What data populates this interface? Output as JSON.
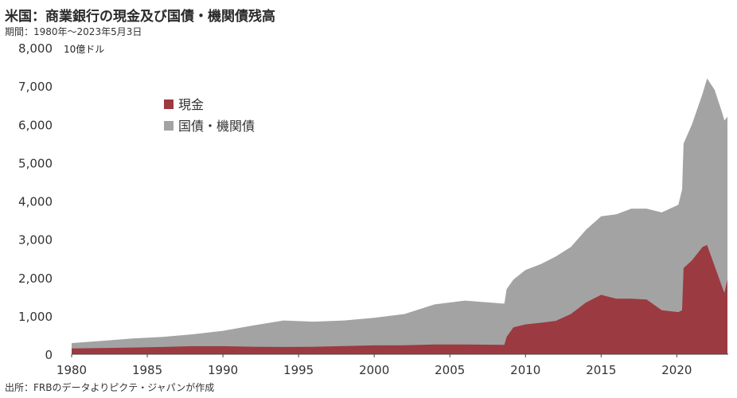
{
  "title": "米国：商業銀行の現金及び国債・機関債残高",
  "subtitle": "期間：1980年～2023年5月3日",
  "source": "出所：FRBのデータよりピクテ・ジャパンが作成",
  "chart_data": {
    "type": "area",
    "title": "米国：商業銀行の現金及び国債・機関債残高",
    "ylabel": "10億ドル",
    "xlabel": "",
    "ylim": [
      0,
      8000
    ],
    "xlim": [
      1980,
      2023.4
    ],
    "yticks": [
      "0",
      "1,000",
      "2,000",
      "3,000",
      "4,000",
      "5,000",
      "6,000",
      "7,000",
      "8,000"
    ],
    "xticks": [
      "1980",
      "1985",
      "1990",
      "1995",
      "2000",
      "2005",
      "2010",
      "2015",
      "2020"
    ],
    "grid": false,
    "legend_position": "upper-left",
    "stacked": true,
    "series": [
      {
        "name": "現金",
        "color": "#9b3a40",
        "points": [
          [
            1980,
            150
          ],
          [
            1982,
            160
          ],
          [
            1984,
            175
          ],
          [
            1986,
            190
          ],
          [
            1988,
            210
          ],
          [
            1990,
            210
          ],
          [
            1992,
            195
          ],
          [
            1994,
            190
          ],
          [
            1996,
            195
          ],
          [
            1998,
            215
          ],
          [
            2000,
            230
          ],
          [
            2002,
            235
          ],
          [
            2004,
            255
          ],
          [
            2006,
            255
          ],
          [
            2008.6,
            245
          ],
          [
            2008.75,
            450
          ],
          [
            2009.2,
            700
          ],
          [
            2010,
            780
          ],
          [
            2011,
            820
          ],
          [
            2012,
            870
          ],
          [
            2013,
            1050
          ],
          [
            2014,
            1350
          ],
          [
            2015,
            1550
          ],
          [
            2016,
            1450
          ],
          [
            2017,
            1450
          ],
          [
            2018,
            1430
          ],
          [
            2019,
            1150
          ],
          [
            2020.1,
            1100
          ],
          [
            2020.35,
            1150
          ],
          [
            2020.45,
            2250
          ],
          [
            2021,
            2450
          ],
          [
            2021.7,
            2800
          ],
          [
            2022,
            2850
          ],
          [
            2022.5,
            2300
          ],
          [
            2023,
            1750
          ],
          [
            2023.15,
            1600
          ],
          [
            2023.35,
            1950
          ]
        ]
      },
      {
        "name": "国債・機関債",
        "color": "#a3a3a3",
        "points": [
          [
            1980,
            290
          ],
          [
            1982,
            350
          ],
          [
            1984,
            410
          ],
          [
            1986,
            450
          ],
          [
            1988,
            520
          ],
          [
            1990,
            610
          ],
          [
            1992,
            750
          ],
          [
            1994,
            880
          ],
          [
            1996,
            850
          ],
          [
            1998,
            880
          ],
          [
            2000,
            950
          ],
          [
            2002,
            1050
          ],
          [
            2004,
            1300
          ],
          [
            2006,
            1400
          ],
          [
            2008.6,
            1320
          ],
          [
            2008.75,
            1700
          ],
          [
            2009.2,
            1950
          ],
          [
            2010,
            2200
          ],
          [
            2011,
            2350
          ],
          [
            2012,
            2550
          ],
          [
            2013,
            2800
          ],
          [
            2014,
            3250
          ],
          [
            2015,
            3600
          ],
          [
            2016,
            3650
          ],
          [
            2017,
            3800
          ],
          [
            2018,
            3800
          ],
          [
            2019,
            3700
          ],
          [
            2020.1,
            3900
          ],
          [
            2020.35,
            4300
          ],
          [
            2020.45,
            5500
          ],
          [
            2021,
            6000
          ],
          [
            2021.7,
            6800
          ],
          [
            2022,
            7200
          ],
          [
            2022.5,
            6900
          ],
          [
            2023,
            6300
          ],
          [
            2023.15,
            6100
          ],
          [
            2023.35,
            6200
          ]
        ]
      }
    ]
  }
}
